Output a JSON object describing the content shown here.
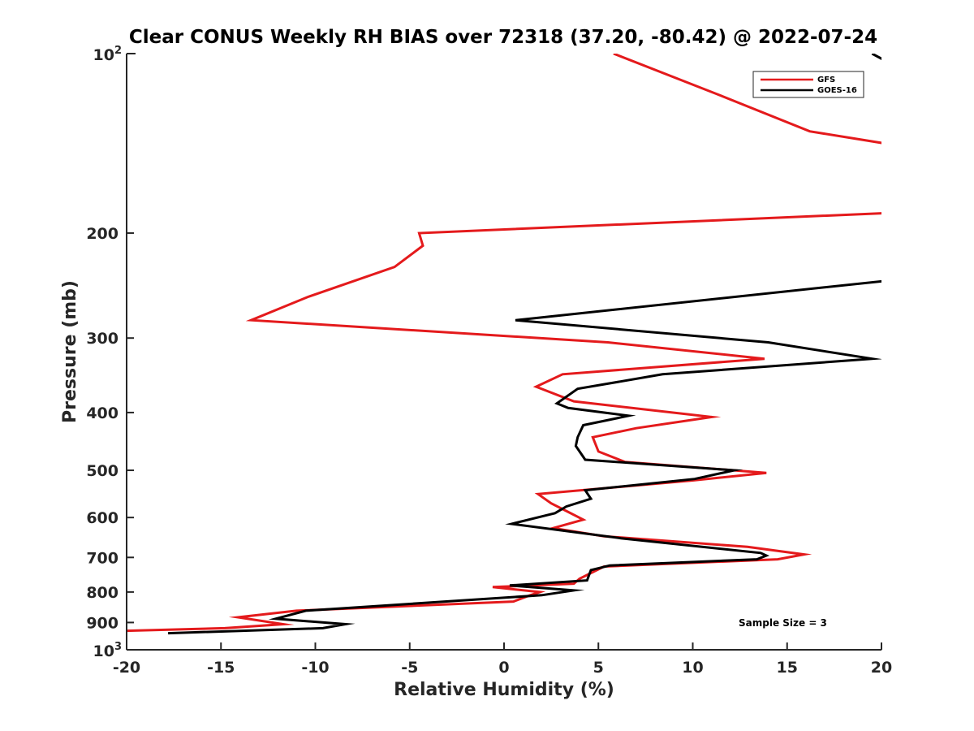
{
  "chart_data": {
    "type": "line",
    "title": "Clear CONUS Weekly RH BIAS over 72318 (37.20, -80.42) @ 2022-07-24",
    "xlabel": "Relative Humidity (%)",
    "ylabel": "Pressure (mb)",
    "xlim": [
      -20,
      20
    ],
    "ylim": [
      100,
      1000
    ],
    "yscale": "log",
    "y_reversed": true,
    "grid": false,
    "legend_position": "top-right",
    "x_ticks": [
      -20,
      -15,
      -10,
      -5,
      0,
      5,
      10,
      15,
      20
    ],
    "x_tick_labels": [
      "-20",
      "-15",
      "-10",
      "-5",
      "0",
      "5",
      "10",
      "15",
      "20"
    ],
    "y_ticks": [
      200,
      300,
      400,
      500,
      600,
      700,
      800,
      900
    ],
    "y_tick_labels": [
      "200",
      "300",
      "400",
      "500",
      "600",
      "700",
      "800",
      "900"
    ],
    "y_end_labels": [
      {
        "value": 100,
        "base": "10",
        "exp": "2"
      },
      {
        "value": 1000,
        "base": "10",
        "exp": "3"
      }
    ],
    "annotation": "Sample Size = 3",
    "series": [
      {
        "name": "GFS",
        "color": "#e41a1c",
        "points": [
          [
            5.8,
            100
          ],
          [
            11.3,
            117
          ],
          [
            16.2,
            135
          ],
          [
            20.5,
            142
          ],
          [
            null,
            null
          ],
          [
            20.5,
            185
          ],
          [
            -4.5,
            200
          ],
          [
            -4.3,
            210
          ],
          [
            -5.8,
            228
          ],
          [
            -10.4,
            256
          ],
          [
            -13.4,
            280
          ],
          [
            5.5,
            305
          ],
          [
            13.8,
            325
          ],
          [
            3.1,
            345
          ],
          [
            1.7,
            362
          ],
          [
            3.7,
            383
          ],
          [
            11.0,
            407
          ],
          [
            7.0,
            425
          ],
          [
            4.7,
            440
          ],
          [
            5.0,
            465
          ],
          [
            6.4,
            484
          ],
          [
            13.9,
            505
          ],
          [
            10.0,
            520
          ],
          [
            1.8,
            548
          ],
          [
            2.5,
            568
          ],
          [
            3.3,
            585
          ],
          [
            4.2,
            605
          ],
          [
            2.6,
            625
          ],
          [
            5.3,
            645
          ],
          [
            12.9,
            672
          ],
          [
            15.9,
            692
          ],
          [
            14.5,
            705
          ],
          [
            5.3,
            725
          ],
          [
            4.0,
            760
          ],
          [
            3.7,
            775
          ],
          [
            -0.6,
            785
          ],
          [
            1.9,
            800
          ],
          [
            1.3,
            812
          ],
          [
            0.5,
            830
          ],
          [
            -11.0,
            860
          ],
          [
            -14.1,
            882
          ],
          [
            -11.7,
            906
          ],
          [
            -14.8,
            920
          ],
          [
            -20.5,
            930
          ]
        ]
      },
      {
        "name": "GOES-16",
        "color": "#000000",
        "points": [
          [
            19.5,
            100
          ],
          [
            20.5,
            104
          ],
          [
            null,
            null
          ],
          [
            20.5,
            240
          ],
          [
            0.6,
            280
          ],
          [
            14.0,
            305
          ],
          [
            19.5,
            325
          ],
          [
            8.4,
            345
          ],
          [
            3.9,
            365
          ],
          [
            2.8,
            386
          ],
          [
            3.4,
            393
          ],
          [
            6.6,
            405
          ],
          [
            4.2,
            420
          ],
          [
            3.9,
            440
          ],
          [
            3.8,
            455
          ],
          [
            4.3,
            480
          ],
          [
            12.2,
            500
          ],
          [
            10.1,
            517
          ],
          [
            4.3,
            540
          ],
          [
            4.6,
            558
          ],
          [
            3.3,
            575
          ],
          [
            2.7,
            590
          ],
          [
            0.4,
            615
          ],
          [
            6.2,
            650
          ],
          [
            13.6,
            688
          ],
          [
            13.9,
            695
          ],
          [
            13.4,
            705
          ],
          [
            5.6,
            722
          ],
          [
            4.6,
            735
          ],
          [
            4.4,
            765
          ],
          [
            0.3,
            780
          ],
          [
            3.7,
            795
          ],
          [
            2.0,
            810
          ],
          [
            -10.5,
            860
          ],
          [
            -12.1,
            887
          ],
          [
            -8.4,
            906
          ],
          [
            -9.6,
            920
          ],
          [
            -17.8,
            938
          ]
        ]
      }
    ]
  }
}
